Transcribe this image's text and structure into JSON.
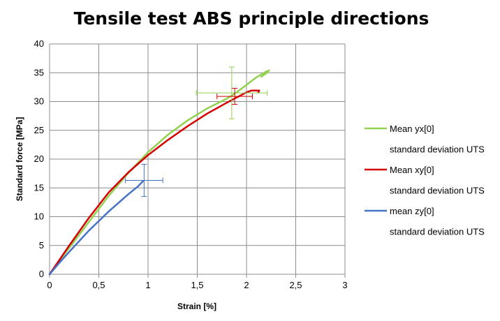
{
  "chart_data": {
    "type": "line",
    "title": "Tensile test ABS principle directions",
    "xlabel": "Strain [%]",
    "ylabel": "Standard force [MPa]",
    "xlim": [
      0,
      3
    ],
    "ylim": [
      0,
      40
    ],
    "x_ticks": [
      0,
      0.5,
      1,
      1.5,
      2,
      2.5,
      3
    ],
    "x_tick_labels": [
      "0",
      "0,5",
      "1",
      "1,5",
      "2",
      "2,5",
      "3"
    ],
    "y_ticks": [
      0,
      5,
      10,
      15,
      20,
      25,
      30,
      35,
      40
    ],
    "y_tick_labels": [
      "0",
      "5",
      "10",
      "15",
      "20",
      "25",
      "30",
      "35",
      "40"
    ],
    "grid": true,
    "legend_position": "right",
    "series": [
      {
        "name": "Mean yx[0]",
        "color": "#92d050",
        "x": [
          0,
          0.1,
          0.2,
          0.4,
          0.6,
          0.8,
          1.0,
          1.2,
          1.4,
          1.6,
          1.8,
          1.9,
          2.0,
          2.1,
          2.2,
          2.23,
          2.2,
          2.15
        ],
        "y": [
          0,
          2.3,
          4.6,
          9.1,
          13.6,
          17.6,
          21.2,
          24.2,
          26.7,
          28.8,
          30.5,
          31.6,
          32.9,
          34.2,
          35.2,
          35.4,
          34.9,
          34.3
        ]
      },
      {
        "name": "Mean xy[0]",
        "color": "#d40000",
        "x": [
          0,
          0.1,
          0.2,
          0.4,
          0.6,
          0.8,
          1.0,
          1.2,
          1.4,
          1.6,
          1.8,
          1.9,
          2.0,
          2.05,
          2.1,
          2.13,
          2.12
        ],
        "y": [
          0,
          2.5,
          5.0,
          9.8,
          14.2,
          17.7,
          20.7,
          23.3,
          25.7,
          27.9,
          29.8,
          30.7,
          31.6,
          31.9,
          31.9,
          31.9,
          31.6
        ]
      },
      {
        "name": "mean zy[0]",
        "color": "#4472c4",
        "x": [
          0,
          0.1,
          0.2,
          0.4,
          0.6,
          0.8,
          0.9,
          0.95
        ],
        "y": [
          0,
          2.0,
          3.9,
          7.6,
          10.9,
          13.9,
          15.3,
          16.2
        ]
      }
    ],
    "error_bars": [
      {
        "series": "Mean yx[0]",
        "x": 1.85,
        "y": 31.5,
        "x_err": 0.36,
        "y_err": 4.5
      },
      {
        "series": "Mean xy[0]",
        "x": 1.88,
        "y": 30.9,
        "x_err": 0.18,
        "y_err": 1.4
      },
      {
        "series": "mean zy[0]",
        "x": 0.96,
        "y": 16.3,
        "x_err": 0.19,
        "y_err": 2.8
      }
    ],
    "legend": [
      {
        "label": "Mean yx[0]",
        "color": "#92d050",
        "line": true
      },
      {
        "label": "standard deviation UTS",
        "color": "#92d050",
        "line": false
      },
      {
        "label": "Mean xy[0]",
        "color": "#d40000",
        "line": true
      },
      {
        "label": "standard deviation UTS",
        "color": "#d40000",
        "line": false
      },
      {
        "label": "mean zy[0]",
        "color": "#4472c4",
        "line": true
      },
      {
        "label": "standard deviation UTS",
        "color": "#4472c4",
        "line": false
      }
    ]
  }
}
